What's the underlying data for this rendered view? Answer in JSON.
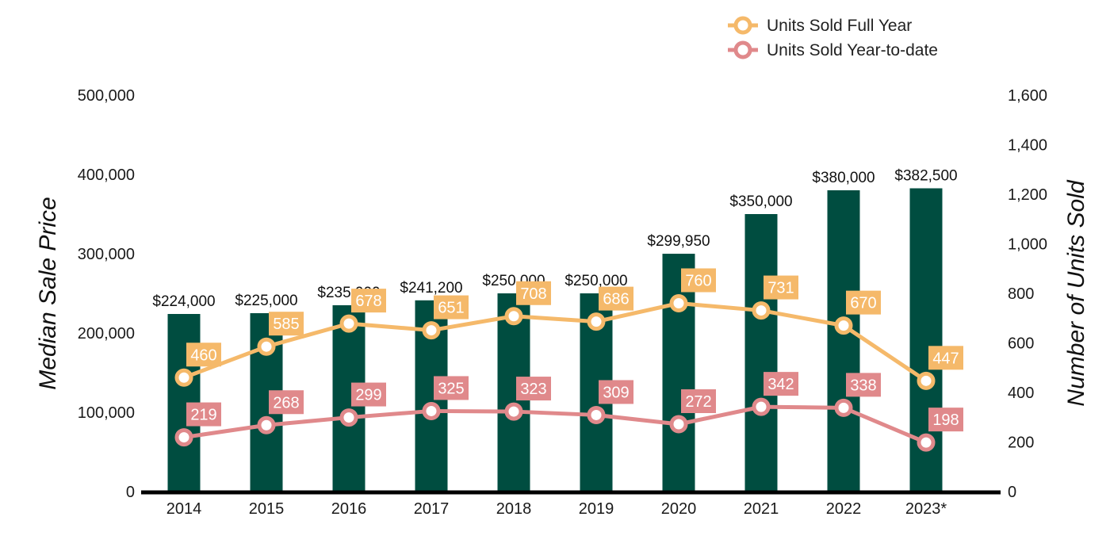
{
  "chart_data": {
    "type": "bar+line",
    "categories": [
      "2014",
      "2015",
      "2016",
      "2017",
      "2018",
      "2019",
      "2020",
      "2021",
      "2022",
      "2023*"
    ],
    "bars": {
      "values": [
        224000,
        225000,
        235000,
        241200,
        250000,
        250000,
        299950,
        350000,
        380000,
        382500
      ],
      "labels": [
        "$224,000",
        "$225,000",
        "$235,000",
        "$241,200",
        "$250,000",
        "$250,000",
        "$299,950",
        "$350,000",
        "$380,000",
        "$382,500"
      ],
      "color": "#004d40"
    },
    "series": [
      {
        "name": "Units Sold Full Year",
        "values": [
          460,
          585,
          678,
          651,
          708,
          686,
          760,
          731,
          670,
          447
        ],
        "color": "#f5b96a",
        "axis": "right"
      },
      {
        "name": "Units Sold Year-to-date",
        "values": [
          219,
          268,
          299,
          325,
          323,
          309,
          272,
          342,
          338,
          198
        ],
        "color": "#e0898b",
        "axis": "right"
      }
    ],
    "ylabel": "Median Sale Price",
    "y2label": "Number of Units Sold",
    "ylim": [
      0,
      500000
    ],
    "y2lim": [
      0,
      1600
    ],
    "yticks": [
      "0",
      "100,000",
      "200,000",
      "300,000",
      "400,000",
      "500,000"
    ],
    "y2ticks": [
      "0",
      "200",
      "400",
      "600",
      "800",
      "1,000",
      "1,200",
      "1,400",
      "1,600"
    ],
    "legend_position": "top-right",
    "grid": false
  }
}
